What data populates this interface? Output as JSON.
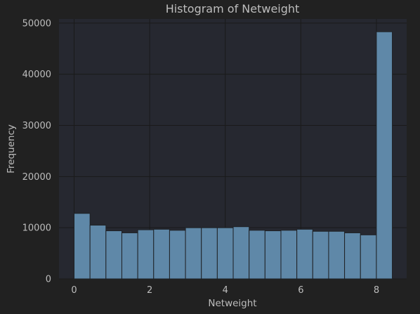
{
  "chart_data": {
    "type": "bar",
    "title": "Histogram of Netweight",
    "xlabel": "Netweight",
    "ylabel": "Frequency",
    "xlim": [
      -0.4,
      8.8
    ],
    "ylim": [
      0,
      50800
    ],
    "xticks": [
      0,
      2,
      4,
      6,
      8
    ],
    "yticks": [
      0,
      10000,
      20000,
      30000,
      40000,
      50000
    ],
    "grid": true,
    "bar_color": "#5f88a8",
    "bin_edges": [
      0,
      0.421,
      0.842,
      1.263,
      1.684,
      2.105,
      2.526,
      2.947,
      3.368,
      3.789,
      4.21,
      4.631,
      5.052,
      5.473,
      5.894,
      6.315,
      6.736,
      7.157,
      7.578,
      7.999,
      8.42
    ],
    "values": [
      12800,
      10500,
      9400,
      9000,
      9600,
      9700,
      9500,
      10000,
      10000,
      10000,
      10200,
      9500,
      9400,
      9500,
      9700,
      9300,
      9300,
      9000,
      8600,
      48300
    ]
  }
}
